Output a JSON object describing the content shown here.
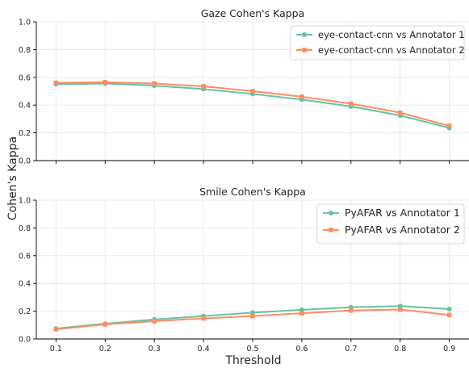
{
  "figure": {
    "shared_ylabel": "Cohen's Kappa",
    "shared_xlabel": "Threshold"
  },
  "colors": {
    "series1": "#66c2a5",
    "series2": "#fc8d62",
    "grid": "#e6e6e6",
    "axis": "#000000"
  },
  "chart_data": [
    {
      "type": "line",
      "title": "Gaze Cohen's Kappa",
      "x": [
        0.1,
        0.2,
        0.3,
        0.4,
        0.5,
        0.6,
        0.7,
        0.8,
        0.9
      ],
      "series": [
        {
          "name": "eye-contact-cnn vs Annotator 1",
          "values": [
            0.55,
            0.555,
            0.54,
            0.515,
            0.48,
            0.44,
            0.39,
            0.325,
            0.235
          ]
        },
        {
          "name": "eye-contact-cnn vs Annotator 2",
          "values": [
            0.56,
            0.565,
            0.555,
            0.535,
            0.5,
            0.46,
            0.41,
            0.345,
            0.25
          ]
        }
      ],
      "ylim": [
        0,
        1.0
      ],
      "yticks": [
        "0.0",
        "0.2",
        "0.4",
        "0.6",
        "0.8",
        "1.0"
      ],
      "xticks": [],
      "grid": true,
      "legend": "top-right"
    },
    {
      "type": "line",
      "title": "Smile Cohen's Kappa",
      "x": [
        0.1,
        0.2,
        0.3,
        0.4,
        0.5,
        0.6,
        0.7,
        0.8,
        0.9
      ],
      "series": [
        {
          "name": "PyAFAR vs Annotator 1",
          "values": [
            0.075,
            0.11,
            0.14,
            0.165,
            0.19,
            0.21,
            0.228,
            0.237,
            0.215
          ]
        },
        {
          "name": "PyAFAR vs Annotator 2",
          "values": [
            0.07,
            0.105,
            0.128,
            0.148,
            0.165,
            0.185,
            0.205,
            0.212,
            0.173
          ]
        }
      ],
      "ylim": [
        0,
        1.0
      ],
      "yticks": [
        "0.0",
        "0.2",
        "0.4",
        "0.6",
        "0.8",
        "1.0"
      ],
      "xticks": [
        "0.1",
        "0.2",
        "0.3",
        "0.4",
        "0.5",
        "0.6",
        "0.7",
        "0.8",
        "0.9"
      ],
      "grid": true,
      "legend": "top-right"
    }
  ]
}
